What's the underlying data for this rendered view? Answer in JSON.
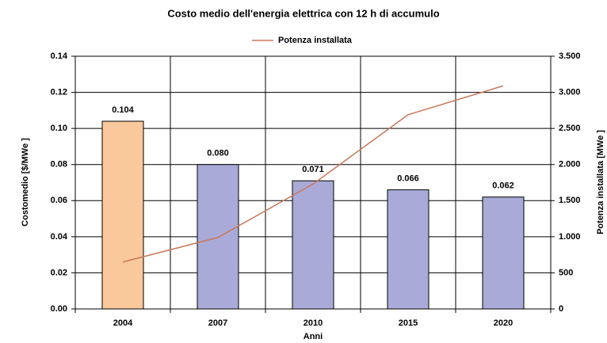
{
  "chart_data": {
    "type": "bar",
    "title": "Costo medio dell'energia elettrica con 12 h di accumulo",
    "xlabel": "Anni",
    "ylabel": "Costomedio [$/MWe ]",
    "y2label": "Potenza installata [MWe ]",
    "categories": [
      "2004",
      "2007",
      "2010",
      "2015",
      "2020"
    ],
    "series": [
      {
        "name": null,
        "type": "bar",
        "colors": [
          "#f9c89b",
          "#aaaad8",
          "#aaaad8",
          "#aaaad8",
          "#aaaad8"
        ],
        "values": [
          0.104,
          0.08,
          0.071,
          0.066,
          0.062
        ],
        "value_labels": [
          "0.104",
          "0.080",
          "0.071",
          "0.066",
          "0.062"
        ]
      },
      {
        "name": "Potenza installata",
        "type": "line",
        "color": "#c8785a",
        "axis": "y2",
        "values": [
          650,
          990,
          1730,
          2690,
          3090
        ]
      }
    ],
    "ylim": [
      0,
      0.14
    ],
    "yticks": [
      {
        "value": 0,
        "label": "0.00"
      },
      {
        "value": 0.02,
        "label": "0.02"
      },
      {
        "value": 0.04,
        "label": "0.04"
      },
      {
        "value": 0.06,
        "label": "0.06"
      },
      {
        "value": 0.08,
        "label": "0.08"
      },
      {
        "value": 0.1,
        "label": "0.10"
      },
      {
        "value": 0.12,
        "label": "0.12"
      },
      {
        "value": 0.14,
        "label": "0.14"
      }
    ],
    "y2lim": [
      0,
      3500
    ],
    "y2ticks": [
      0,
      500,
      {
        "value": 1000,
        "label": "1.000"
      },
      {
        "value": 1500,
        "label": "1.500"
      },
      {
        "value": 2000,
        "label": "2.000"
      },
      {
        "value": 2500,
        "label": "2.500"
      },
      {
        "value": 3000,
        "label": "3.000"
      },
      {
        "value": 3500,
        "label": "3.500"
      }
    ],
    "grid": true,
    "legend": "top"
  }
}
